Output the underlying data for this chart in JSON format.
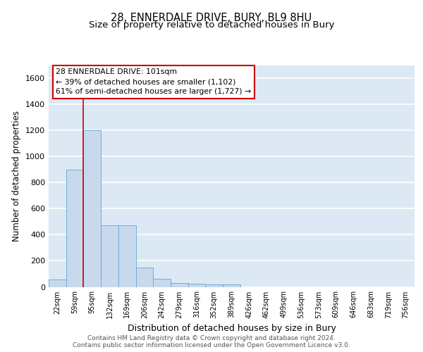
{
  "title1": "28, ENNERDALE DRIVE, BURY, BL9 8HU",
  "title2": "Size of property relative to detached houses in Bury",
  "xlabel": "Distribution of detached houses by size in Bury",
  "ylabel": "Number of detached properties",
  "bar_labels": [
    "22sqm",
    "59sqm",
    "95sqm",
    "132sqm",
    "169sqm",
    "206sqm",
    "242sqm",
    "279sqm",
    "316sqm",
    "352sqm",
    "389sqm",
    "426sqm",
    "462sqm",
    "499sqm",
    "536sqm",
    "573sqm",
    "609sqm",
    "646sqm",
    "683sqm",
    "719sqm",
    "756sqm"
  ],
  "bar_heights": [
    55,
    900,
    1200,
    470,
    470,
    150,
    60,
    30,
    25,
    20,
    20,
    0,
    0,
    0,
    0,
    0,
    0,
    0,
    0,
    0,
    0
  ],
  "bar_color": "#c8d9ee",
  "bar_edge_color": "#6baed6",
  "bg_color": "#dce9f5",
  "grid_color": "#ffffff",
  "vline_color": "#cc0000",
  "vline_position": 2,
  "annotation_text": "28 ENNERDALE DRIVE: 101sqm\n← 39% of detached houses are smaller (1,102)\n61% of semi-detached houses are larger (1,727) →",
  "annotation_box_color": "#cc0000",
  "ylim": [
    0,
    1700
  ],
  "yticks": [
    0,
    200,
    400,
    600,
    800,
    1000,
    1200,
    1400,
    1600
  ],
  "footer_text": "Contains HM Land Registry data © Crown copyright and database right 2024.\nContains public sector information licensed under the Open Government Licence v3.0.",
  "title1_fontsize": 10.5,
  "title2_fontsize": 9.5,
  "footer_fontsize": 6.5
}
